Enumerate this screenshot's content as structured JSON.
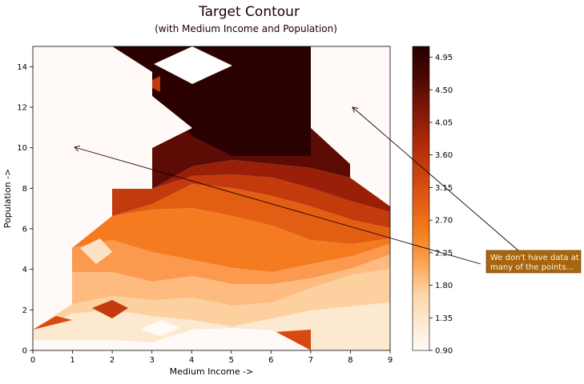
{
  "chart_data": {
    "type": "contour",
    "title": "Target Contour",
    "subtitle": "(with Medium Income and Population)",
    "xlabel": "Medium Income  ->",
    "ylabel": "Population  ->",
    "xlim": [
      0,
      9
    ],
    "ylim": [
      0,
      15
    ],
    "xticks": [
      "0",
      "1",
      "2",
      "3",
      "4",
      "5",
      "6",
      "7",
      "8",
      "9"
    ],
    "yticks": [
      "0",
      "2",
      "4",
      "6",
      "8",
      "10",
      "12",
      "14"
    ],
    "colorbar": {
      "min": 0.9,
      "max": 5.1,
      "ticks": [
        "0.90",
        "1.35",
        "1.80",
        "2.25",
        "2.70",
        "3.15",
        "3.60",
        "4.05",
        "4.50",
        "4.95"
      ]
    },
    "annotation": {
      "text_line1": "We don't have data at",
      "text_line2": "many of the points...",
      "arrow_targets": [
        [
          1,
          10
        ],
        [
          8,
          12
        ]
      ]
    },
    "colors": {
      "background": "#fffaf7",
      "annotation_box": "#a8650f"
    }
  }
}
